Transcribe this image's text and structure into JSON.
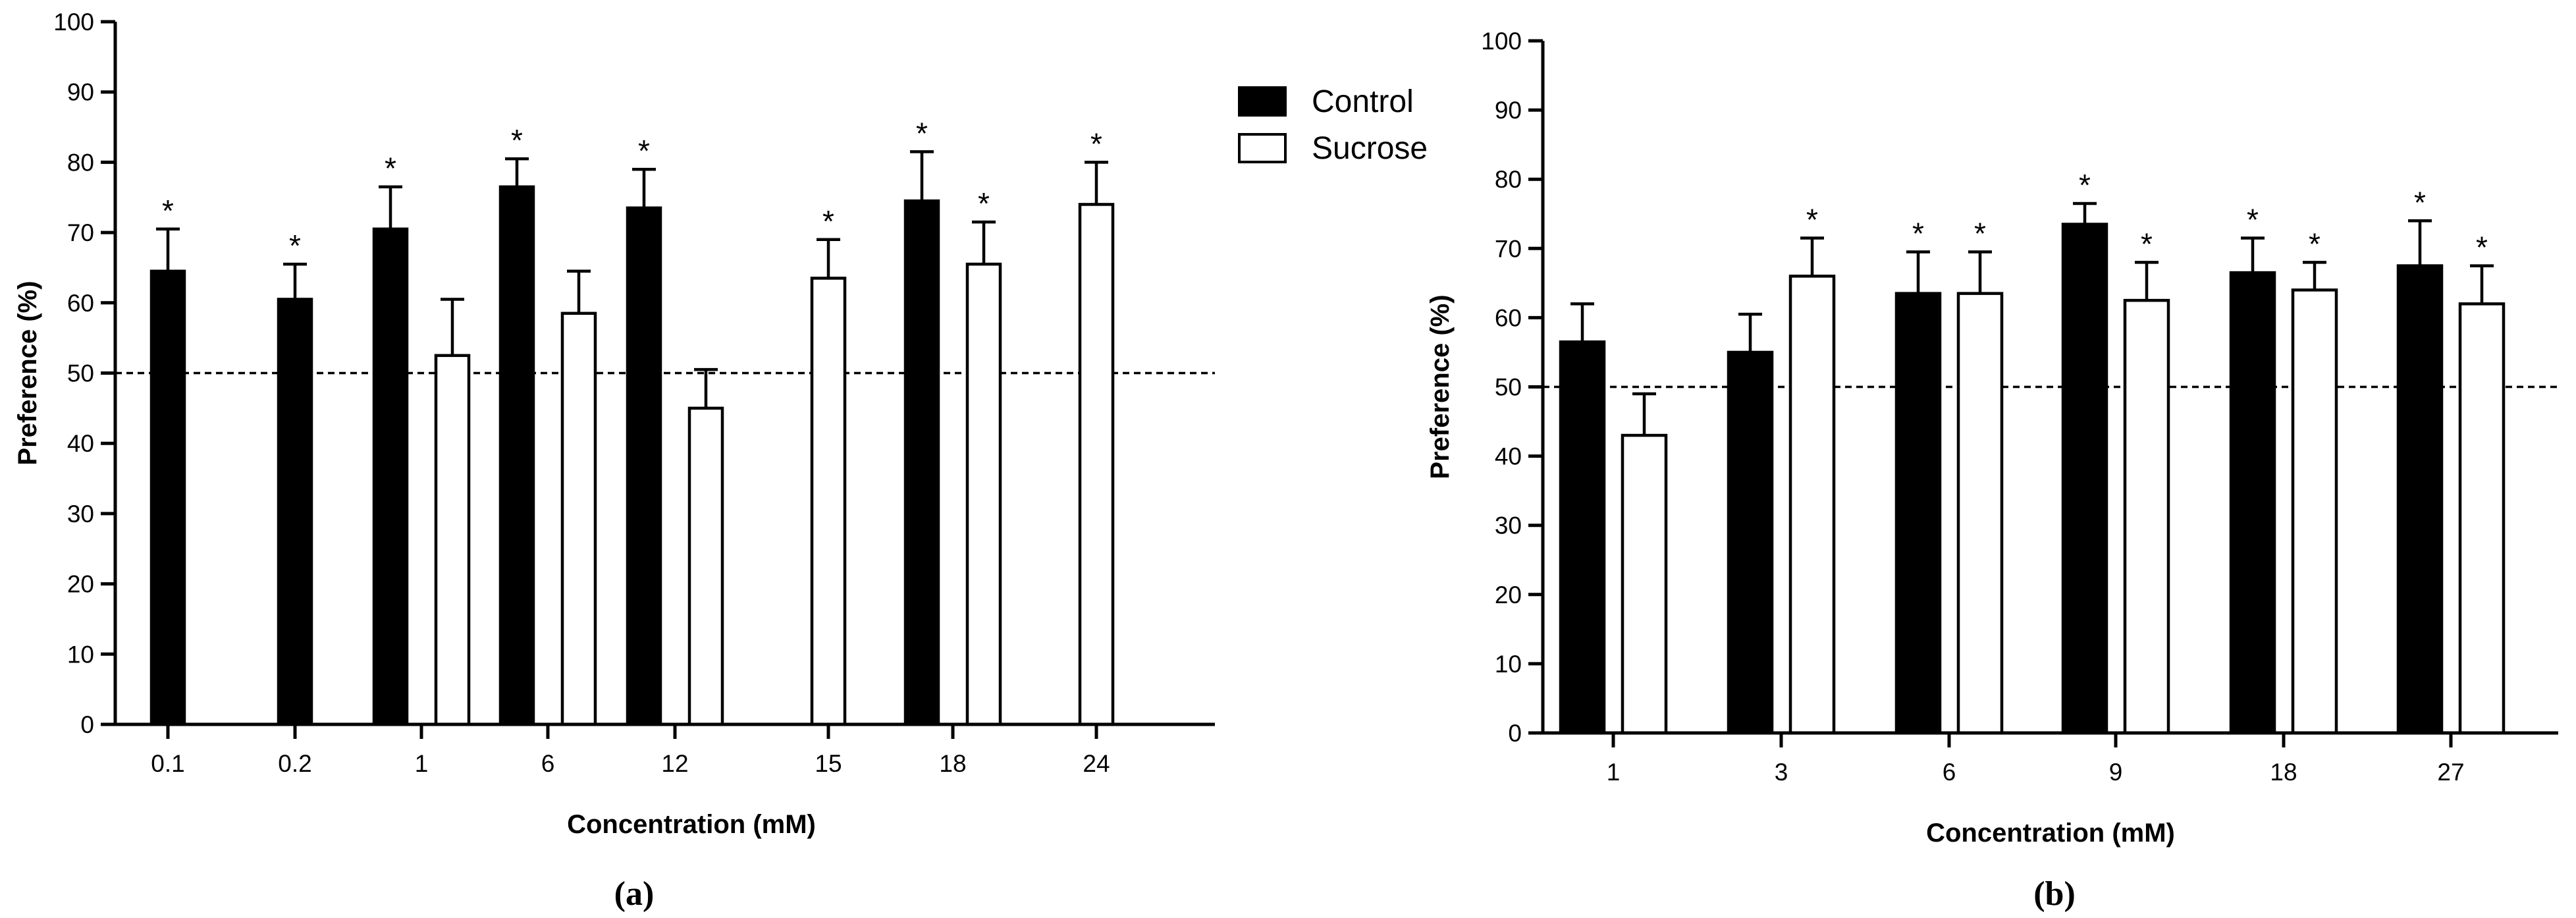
{
  "chart_data": [
    {
      "id": "a",
      "type": "bar",
      "panel_label": "(a)",
      "xlabel": "Concentration (mM)",
      "ylabel": "Preference (%)",
      "ylim": [
        0,
        100
      ],
      "yticks": [
        0,
        10,
        20,
        30,
        40,
        50,
        60,
        70,
        80,
        90,
        100
      ],
      "reference_line": 50,
      "categories": [
        "0.1",
        "0.2",
        "1",
        "6",
        "12",
        "15",
        "18",
        "24"
      ],
      "series": [
        {
          "name": "Control",
          "color": "#000000",
          "values": [
            64.5,
            60.5,
            70.5,
            76.5,
            73.5,
            null,
            74.5,
            null
          ],
          "errors": [
            6,
            5,
            6,
            4,
            5.5,
            null,
            7,
            null
          ],
          "significant": [
            true,
            true,
            true,
            true,
            true,
            false,
            true,
            false
          ]
        },
        {
          "name": "Sucrose",
          "color": "#ffffff",
          "values": [
            null,
            null,
            52.5,
            58.5,
            45,
            63.5,
            65.5,
            74
          ],
          "errors": [
            null,
            null,
            8,
            6,
            5.5,
            5.5,
            6,
            6
          ],
          "significant": [
            false,
            false,
            false,
            false,
            false,
            true,
            true,
            true
          ]
        }
      ],
      "legend": {
        "position": "top-right",
        "entries": [
          "Control",
          "Sucrose"
        ]
      }
    },
    {
      "id": "b",
      "type": "bar",
      "panel_label": "(b)",
      "xlabel": "Concentration (mM)",
      "ylabel": "Preference (%)",
      "ylim": [
        0,
        100
      ],
      "yticks": [
        0,
        10,
        20,
        30,
        40,
        50,
        60,
        70,
        80,
        90,
        100
      ],
      "reference_line": 50,
      "categories": [
        "1",
        "3",
        "6",
        "9",
        "18",
        "27"
      ],
      "series": [
        {
          "name": "Control",
          "color": "#000000",
          "values": [
            56.5,
            55,
            63.5,
            73.5,
            66.5,
            67.5
          ],
          "errors": [
            5.5,
            5.5,
            6,
            3,
            5,
            6.5
          ],
          "significant": [
            false,
            false,
            true,
            true,
            true,
            true
          ]
        },
        {
          "name": "Sucrose",
          "color": "#ffffff",
          "values": [
            43,
            66,
            63.5,
            62.5,
            64,
            62
          ],
          "errors": [
            6,
            5.5,
            6,
            5.5,
            4,
            5.5
          ],
          "significant": [
            false,
            true,
            true,
            true,
            true,
            true
          ]
        }
      ]
    }
  ],
  "significance_marker": "*"
}
